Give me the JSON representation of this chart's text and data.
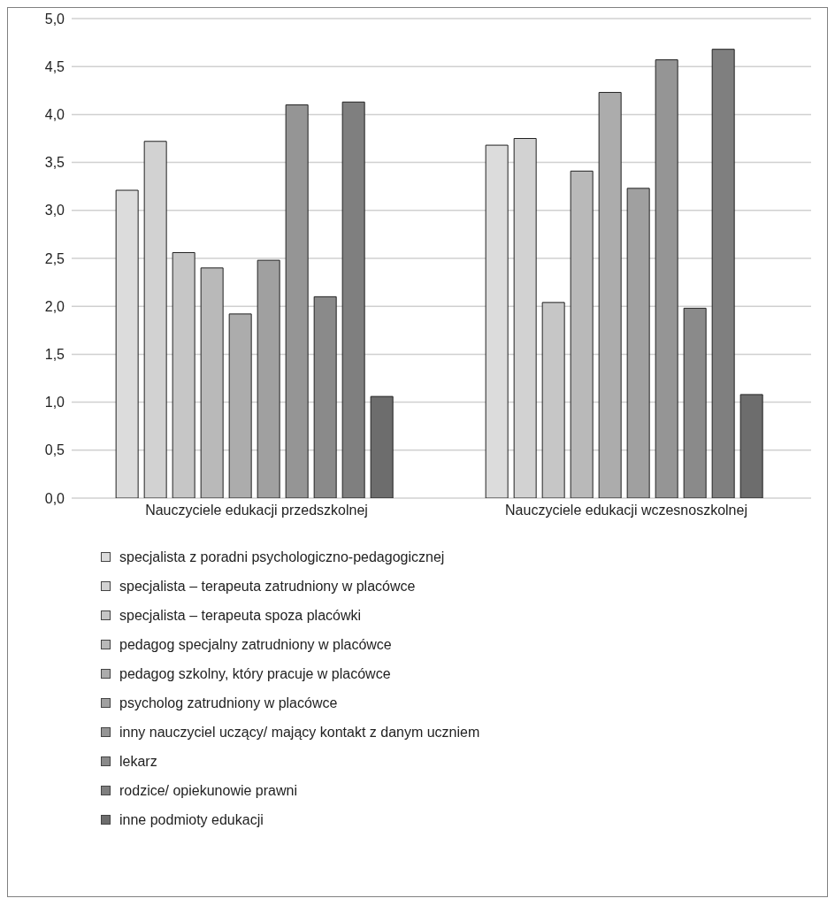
{
  "chart_data": {
    "type": "bar",
    "categories": [
      "Nauczyciele edukacji przedszkolnej",
      "Nauczyciele edukacji wczesnoszkolnej"
    ],
    "series": [
      {
        "name": "specjalista z poradni psychologiczno-pedagogicznej",
        "color": "#dcdcdc",
        "values": [
          3.21,
          3.68
        ]
      },
      {
        "name": "specjalista – terapeuta zatrudniony w placówce",
        "color": "#d2d2d2",
        "values": [
          3.72,
          3.75
        ]
      },
      {
        "name": "specjalista – terapeuta spoza placówki",
        "color": "#c6c6c6",
        "values": [
          2.56,
          2.04
        ]
      },
      {
        "name": "pedagog specjalny zatrudniony w placówce",
        "color": "#b9b9b9",
        "values": [
          2.4,
          3.41
        ]
      },
      {
        "name": "pedagog szkolny, który pracuje w placówce",
        "color": "#acacac",
        "values": [
          1.92,
          4.23
        ]
      },
      {
        "name": "psycholog zatrudniony w placówce",
        "color": "#a0a0a0",
        "values": [
          2.48,
          3.23
        ]
      },
      {
        "name": "inny nauczyciel uczący/ mający kontakt z danym uczniem",
        "color": "#959595",
        "values": [
          4.1,
          4.57
        ]
      },
      {
        "name": "lekarz",
        "color": "#8a8a8a",
        "values": [
          2.1,
          1.98
        ]
      },
      {
        "name": "rodzice/ opiekunowie prawni",
        "color": "#7f7f7f",
        "values": [
          4.13,
          4.68
        ]
      },
      {
        "name": "inne podmioty edukacji",
        "color": "#6d6d6d",
        "values": [
          1.06,
          1.08
        ]
      }
    ],
    "ylim": [
      0,
      5
    ],
    "yticks": [
      {
        "value": 0,
        "label": "0,0"
      },
      {
        "value": 0.5,
        "label": "0,5"
      },
      {
        "value": 1,
        "label": "1,0"
      },
      {
        "value": 1.5,
        "label": "1,5"
      },
      {
        "value": 2,
        "label": "2,0"
      },
      {
        "value": 2.5,
        "label": "2,5"
      },
      {
        "value": 3,
        "label": "3,0"
      },
      {
        "value": 3.5,
        "label": "3,5"
      },
      {
        "value": 4,
        "label": "4,0"
      },
      {
        "value": 4.5,
        "label": "4,5"
      },
      {
        "value": 5,
        "label": "5,0"
      }
    ],
    "grid": "y",
    "legend": "bottom"
  }
}
